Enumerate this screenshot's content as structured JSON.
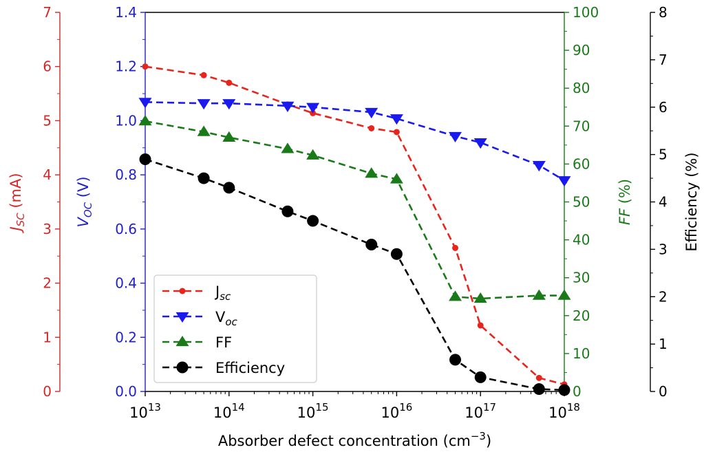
{
  "chart_data": {
    "type": "line",
    "x_scale": "log",
    "x": [
      10000000000000.0,
      50000000000000.0,
      100000000000000.0,
      500000000000000.0,
      1000000000000000.0,
      5000000000000000.0,
      1e+16,
      5e+16,
      1e+17,
      5e+17,
      1e+18
    ],
    "xlim": [
      10000000000000.0,
      1e+18
    ],
    "xlabel_text": "Absorber defect concentration (cm",
    "xlabel_sup": "−3",
    "xlabel_close": ")",
    "x_tick_base": "10",
    "x_tick_exponents": [
      "13",
      "14",
      "15",
      "16",
      "17",
      "18"
    ],
    "grid": false,
    "legend_position": "lower-left",
    "axes": [
      {
        "id": "jsc",
        "label_main": "J",
        "label_sub": "SC",
        "label_rest": " (mA)",
        "label_italic": true,
        "color": "#d62728",
        "ylim": [
          0,
          7
        ],
        "ticks": [
          "0",
          "1",
          "2",
          "3",
          "4",
          "5",
          "6",
          "7"
        ]
      },
      {
        "id": "voc",
        "label_main": "V",
        "label_sub": "OC",
        "label_rest": " (V)",
        "label_italic": true,
        "color": "#1f1fcc",
        "ylim": [
          0,
          1.5
        ],
        "ticks": [
          "0.0",
          "0.2",
          "0.4",
          "0.6",
          "0.8",
          "1.0",
          "1.2",
          "1.4"
        ]
      },
      {
        "id": "ff",
        "label_main": "FF",
        "label_sub": "",
        "label_rest": " (%)",
        "label_italic": true,
        "color": "#1a7a1a",
        "ylim": [
          0,
          100
        ],
        "ticks": [
          "0",
          "10",
          "20",
          "30",
          "40",
          "50",
          "60",
          "70",
          "80",
          "90",
          "100"
        ]
      },
      {
        "id": "eff",
        "label_main": "Efficiency (%)",
        "label_sub": "",
        "label_rest": "",
        "label_italic": false,
        "color": "#000000",
        "ylim": [
          0,
          8
        ],
        "ticks": [
          "0",
          "1",
          "2",
          "3",
          "4",
          "5",
          "6",
          "7",
          "8"
        ]
      }
    ],
    "series": [
      {
        "name": "J",
        "name_sub": "sc",
        "axis": "jsc",
        "marker": "dot",
        "color": "#e8251d",
        "values": [
          6.0,
          5.84,
          5.7,
          5.3,
          5.14,
          4.86,
          4.79,
          2.65,
          1.22,
          0.25,
          0.13
        ]
      },
      {
        "name": "V",
        "name_sub": "oc",
        "axis": "voc",
        "marker": "triangle-down",
        "color": "#1a1aee",
        "values": [
          1.145,
          1.14,
          1.14,
          1.13,
          1.125,
          1.105,
          1.08,
          1.01,
          0.985,
          0.895,
          0.835
        ]
      },
      {
        "name": "FF",
        "name_sub": "",
        "axis": "ff",
        "marker": "triangle-up",
        "color": "#1a7a1a",
        "values": [
          71.3,
          68.5,
          67.0,
          64.0,
          62.3,
          57.5,
          56.0,
          25.0,
          24.5,
          25.3,
          25.3
        ]
      },
      {
        "name": "Efficiency",
        "name_sub": "",
        "axis": "eff",
        "marker": "circle",
        "color": "#000000",
        "values": [
          4.9,
          4.5,
          4.3,
          3.8,
          3.6,
          3.1,
          2.9,
          0.67,
          0.3,
          0.05,
          0.03
        ]
      }
    ]
  }
}
